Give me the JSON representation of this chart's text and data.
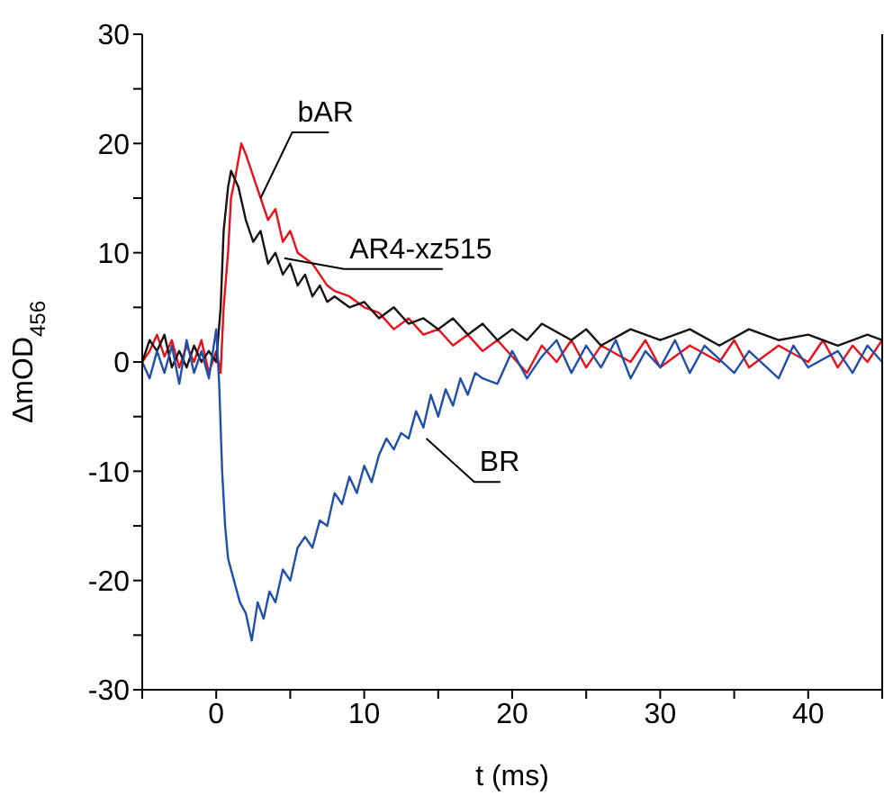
{
  "chart_data": {
    "type": "line",
    "xlabel": "t (ms)",
    "ylabel": "ΔmOD$_{456}$",
    "xlim": [
      -5,
      45
    ],
    "ylim": [
      -30,
      30
    ],
    "xticks": [
      {
        "value": -5,
        "label": null
      },
      0,
      {
        "value": 5,
        "label": null
      },
      10,
      {
        "value": 15,
        "label": null
      },
      20,
      {
        "value": 25,
        "label": null
      },
      30,
      {
        "value": 35,
        "label": null
      },
      40,
      {
        "value": 45,
        "label": null
      }
    ],
    "yticks": [
      -30,
      {
        "value": -25,
        "label": null
      },
      -20,
      {
        "value": -15,
        "label": null
      },
      -10,
      {
        "value": -5,
        "label": null
      },
      0,
      {
        "value": 5,
        "label": null
      },
      10,
      {
        "value": 15,
        "label": null
      },
      20,
      {
        "value": 25,
        "label": null
      },
      30
    ],
    "grid": false,
    "legend": false,
    "marker": "none",
    "line_style": "solid",
    "series": [
      {
        "name": "bAR",
        "color": "#e8101a",
        "x": [
          -5,
          -4.5,
          -4,
          -3.5,
          -3,
          -2.5,
          -2,
          -1.5,
          -1,
          -0.5,
          0,
          0.3,
          0.5,
          0.8,
          1,
          1.3,
          1.7,
          2,
          2.5,
          3,
          3.5,
          4,
          4.5,
          5,
          5.5,
          6,
          6.5,
          7,
          7.5,
          8,
          9,
          10,
          11,
          12,
          13,
          14,
          15,
          16,
          17,
          18,
          19,
          20,
          21,
          22,
          23,
          24,
          25,
          26,
          28,
          29,
          30,
          32,
          34,
          35,
          36,
          38,
          40,
          41,
          42,
          43,
          44,
          45
        ],
        "values": [
          0,
          1,
          2.5,
          0.5,
          2,
          -0.5,
          1.5,
          0,
          2,
          -1,
          1,
          -1,
          5,
          10,
          15,
          17,
          20,
          19,
          17,
          15,
          13,
          14,
          11,
          12,
          10,
          9.5,
          9,
          8,
          7,
          6.5,
          6,
          5,
          4.5,
          3,
          4,
          2.5,
          3,
          1.5,
          2.5,
          1,
          2,
          0.5,
          -1,
          1.5,
          0,
          2,
          -0.5,
          1.5,
          0,
          2,
          -0.5,
          1.5,
          0,
          2,
          -0.5,
          1.5,
          0,
          2,
          -0.5,
          1.5,
          0,
          2
        ]
      },
      {
        "name": "AR4-xz515",
        "color": "#1a1111",
        "x": [
          -5,
          -4.5,
          -4,
          -3.5,
          -3,
          -2.5,
          -2,
          -1.5,
          -1,
          -0.5,
          0,
          0.3,
          0.5,
          0.8,
          1,
          1.5,
          2,
          2.5,
          3,
          3.5,
          4,
          4.5,
          5,
          5.5,
          6,
          6.5,
          7,
          7.5,
          8,
          9,
          10,
          11,
          12,
          13,
          14,
          15,
          16,
          17,
          18,
          19,
          20,
          21,
          22,
          24,
          25,
          26,
          28,
          30,
          32,
          34,
          36,
          38,
          40,
          42,
          44,
          45
        ],
        "values": [
          0,
          2,
          1,
          2.5,
          -0.5,
          1,
          -0.5,
          1.5,
          0,
          1,
          0,
          5,
          12,
          16,
          17.5,
          16,
          13,
          11,
          12,
          9,
          10,
          8,
          9,
          7,
          8,
          6,
          7,
          5.5,
          6,
          5,
          5.5,
          4,
          5,
          3.5,
          4,
          3,
          4,
          2.5,
          3.5,
          2,
          3,
          2,
          3.5,
          2,
          3,
          1.5,
          3,
          2,
          3,
          1.5,
          3,
          2,
          2.5,
          1.5,
          2.5,
          2
        ]
      },
      {
        "name": "BR",
        "color": "#1f4fa8",
        "x": [
          -5,
          -4.5,
          -4,
          -3.5,
          -3,
          -2.5,
          -2,
          -1.5,
          -1,
          -0.5,
          0,
          0.2,
          0.4,
          0.6,
          0.8,
          1.2,
          1.6,
          2,
          2.4,
          2.8,
          3.2,
          3.6,
          4,
          4.5,
          5,
          5.5,
          6,
          6.5,
          7,
          7.5,
          8,
          8.5,
          9,
          9.5,
          10,
          10.5,
          11,
          11.5,
          12,
          12.5,
          13,
          13.5,
          14,
          14.5,
          15,
          15.5,
          16,
          16.5,
          17,
          17.5,
          18,
          19,
          20,
          21,
          22,
          23,
          24,
          25,
          26,
          27,
          28,
          29,
          30,
          31,
          32,
          33,
          35,
          36,
          38,
          39,
          40,
          42,
          43,
          44,
          45
        ],
        "values": [
          0,
          -1.5,
          1,
          -1,
          1.5,
          -2,
          2,
          -1,
          1,
          -1.5,
          3,
          -2,
          -10,
          -15,
          -18,
          -20,
          -22,
          -23,
          -25.5,
          -22,
          -23.5,
          -21,
          -22,
          -19,
          -20,
          -17,
          -16,
          -17,
          -14.5,
          -15,
          -12,
          -13,
          -10.5,
          -12,
          -9.5,
          -11,
          -8.5,
          -7,
          -8,
          -6.5,
          -7,
          -4.5,
          -6,
          -3,
          -5,
          -2.5,
          -4,
          -1.5,
          -3,
          -1,
          -1.5,
          -2,
          1,
          -1.5,
          0.5,
          2,
          -1,
          1.5,
          -0.5,
          2,
          -1.5,
          1,
          -0.5,
          2,
          -1,
          1.5,
          -1,
          1,
          -1.5,
          1.5,
          -0.5,
          1,
          -1,
          1.5,
          0
        ]
      }
    ]
  }
}
